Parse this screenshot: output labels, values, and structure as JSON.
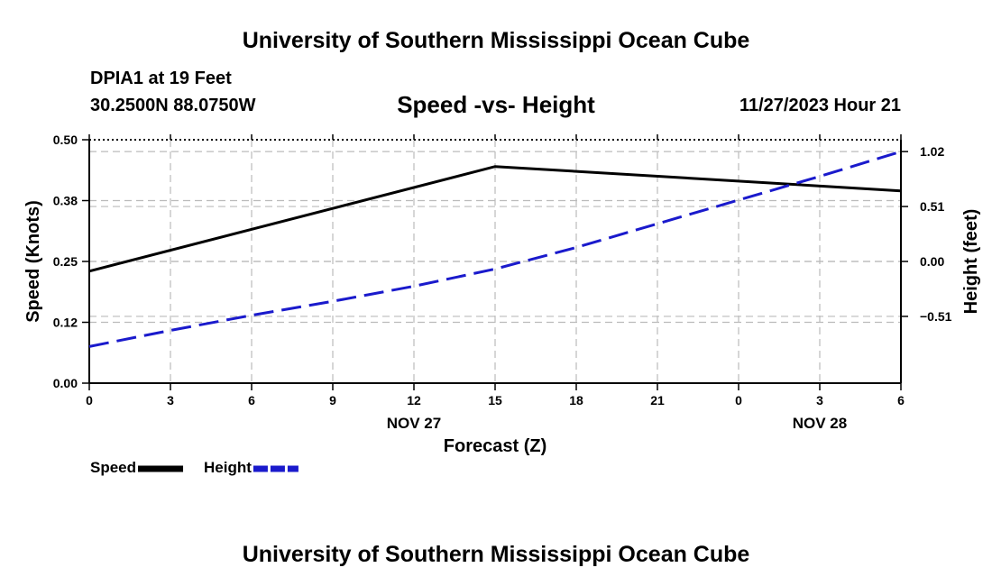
{
  "page": {
    "top_title": "University of Southern Mississippi Ocean Cube",
    "bottom_title": "University of Southern Mississippi Ocean Cube",
    "station": "DPIA1 at 19 Feet",
    "coordinates": "30.2500N  88.0750W",
    "datetime": "11/27/2023 Hour 21"
  },
  "colors": {
    "speed": "#000000",
    "height": "#1a1acc",
    "grid": "#bbbbbb"
  },
  "chart_data": {
    "type": "line",
    "title": "Speed -vs- Height",
    "xlabel": "Forecast (Z)",
    "ylabel": "Speed (Knots)",
    "y2label": "Height (feet)",
    "x": [
      0,
      3,
      6,
      9,
      12,
      15,
      18,
      21,
      24,
      27,
      30
    ],
    "x_tick_labels": [
      "0",
      "3",
      "6",
      "9",
      "12",
      "15",
      "18",
      "21",
      "0",
      "3",
      "6"
    ],
    "date_labels": [
      {
        "label": "NOV 27",
        "x": 12
      },
      {
        "label": "NOV 28",
        "x": 27
      }
    ],
    "xlim": [
      0,
      30
    ],
    "ylim": [
      0,
      0.5
    ],
    "y_ticks": [
      "0.00",
      "0.12",
      "0.25",
      "0.38",
      "0.50"
    ],
    "y_tick_values": [
      0,
      0.125,
      0.25,
      0.375,
      0.5
    ],
    "y2lim": [
      -1.13,
      1.13
    ],
    "y2_ticks": [
      "-0.51",
      "0.00",
      "0.51",
      "1.02"
    ],
    "y2_tick_values": [
      -0.51,
      0,
      0.51,
      1.02
    ],
    "series": [
      {
        "name": "Speed",
        "axis": "left",
        "style": "solid",
        "x": [
          0,
          15,
          30
        ],
        "values": [
          0.23,
          0.445,
          0.395
        ]
      },
      {
        "name": "Height",
        "axis": "right",
        "style": "dashed",
        "x": [
          0,
          3,
          6,
          9,
          12,
          15,
          18,
          21,
          24,
          27,
          30
        ],
        "values": [
          -0.79,
          -0.64,
          -0.5,
          -0.37,
          -0.23,
          -0.07,
          0.13,
          0.35,
          0.57,
          0.79,
          1.02
        ]
      }
    ],
    "legend": [
      {
        "label": "Speed",
        "series": "Speed"
      },
      {
        "label": "Height",
        "series": "Height"
      }
    ],
    "grid": true
  }
}
